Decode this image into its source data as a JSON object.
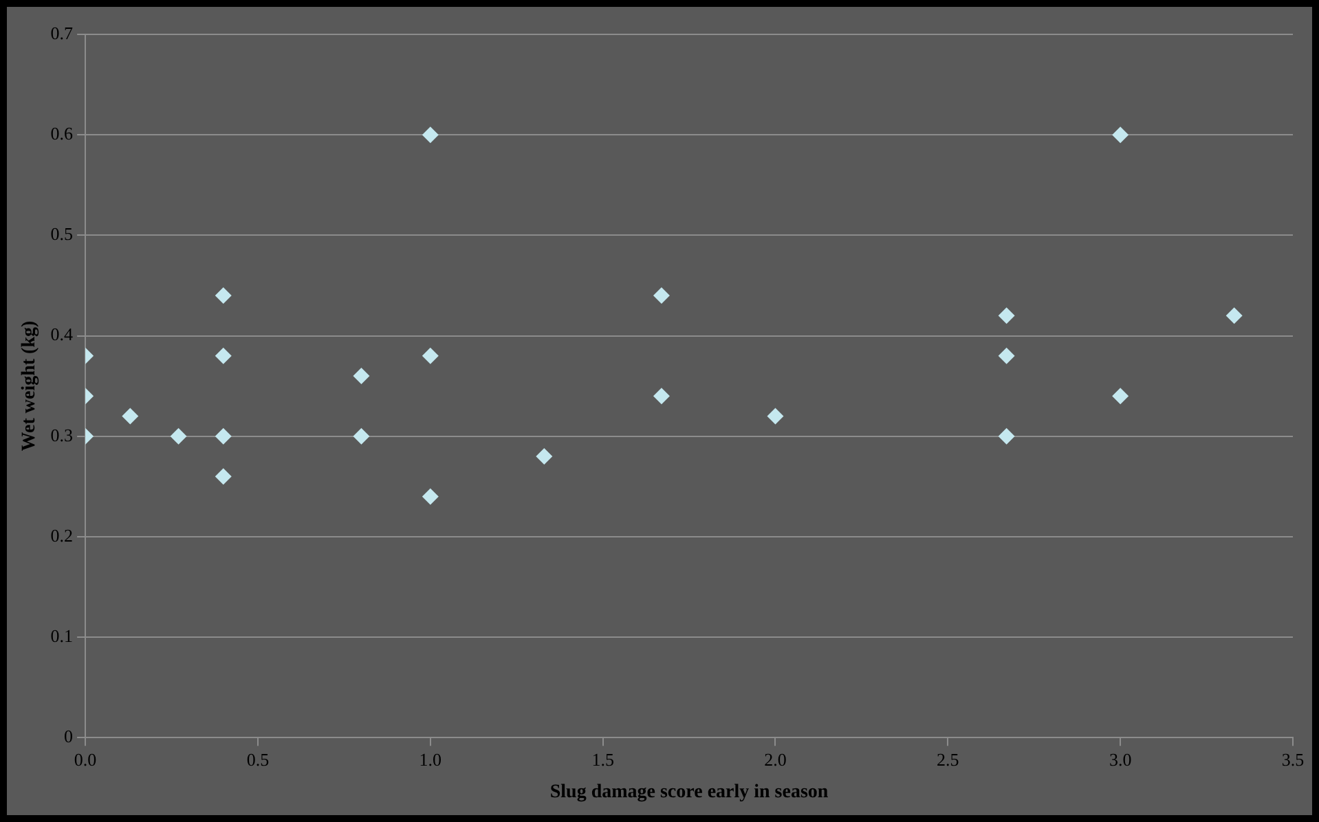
{
  "chart_data": {
    "type": "scatter",
    "xlabel": "Slug damage score early in season",
    "ylabel": "Wet weight (kg)",
    "series": [
      {
        "color": "#c5e8ef",
        "x": [
          0,
          0,
          0,
          0.13,
          0.27,
          0.4,
          0.4,
          0.4,
          0.4,
          0.8,
          0.8,
          1,
          1,
          1,
          1.33,
          1.67,
          1.67,
          2,
          2.67,
          2.67,
          2.67,
          3,
          3,
          3.33
        ],
        "values": [
          0.38,
          0.34,
          0.3,
          0.32,
          0.3,
          0.44,
          0.38,
          0.3,
          0.26,
          0.36,
          0.3,
          0.6,
          0.38,
          0.24,
          0.28,
          0.44,
          0.34,
          0.32,
          0.42,
          0.38,
          0.3,
          0.6,
          0.34,
          0.42
        ]
      }
    ],
    "xlim": [
      0,
      3.5
    ],
    "xticks": [
      {
        "value": 0,
        "label": "0.0"
      },
      {
        "value": 0.5,
        "label": "0.5"
      },
      {
        "value": 1,
        "label": "1.0"
      },
      {
        "value": 1.5,
        "label": "1.5"
      },
      {
        "value": 2,
        "label": "2.0"
      },
      {
        "value": 2.5,
        "label": "2.5"
      },
      {
        "value": 3,
        "label": "3.0"
      },
      {
        "value": 3.5,
        "label": "3.5"
      }
    ],
    "ylim": [
      0,
      0.7
    ],
    "yticks": [
      0,
      0.1,
      0.2,
      0.3,
      0.4,
      0.5,
      0.6,
      0.7
    ],
    "grid": "y",
    "legend": false,
    "marker": "diamond"
  }
}
